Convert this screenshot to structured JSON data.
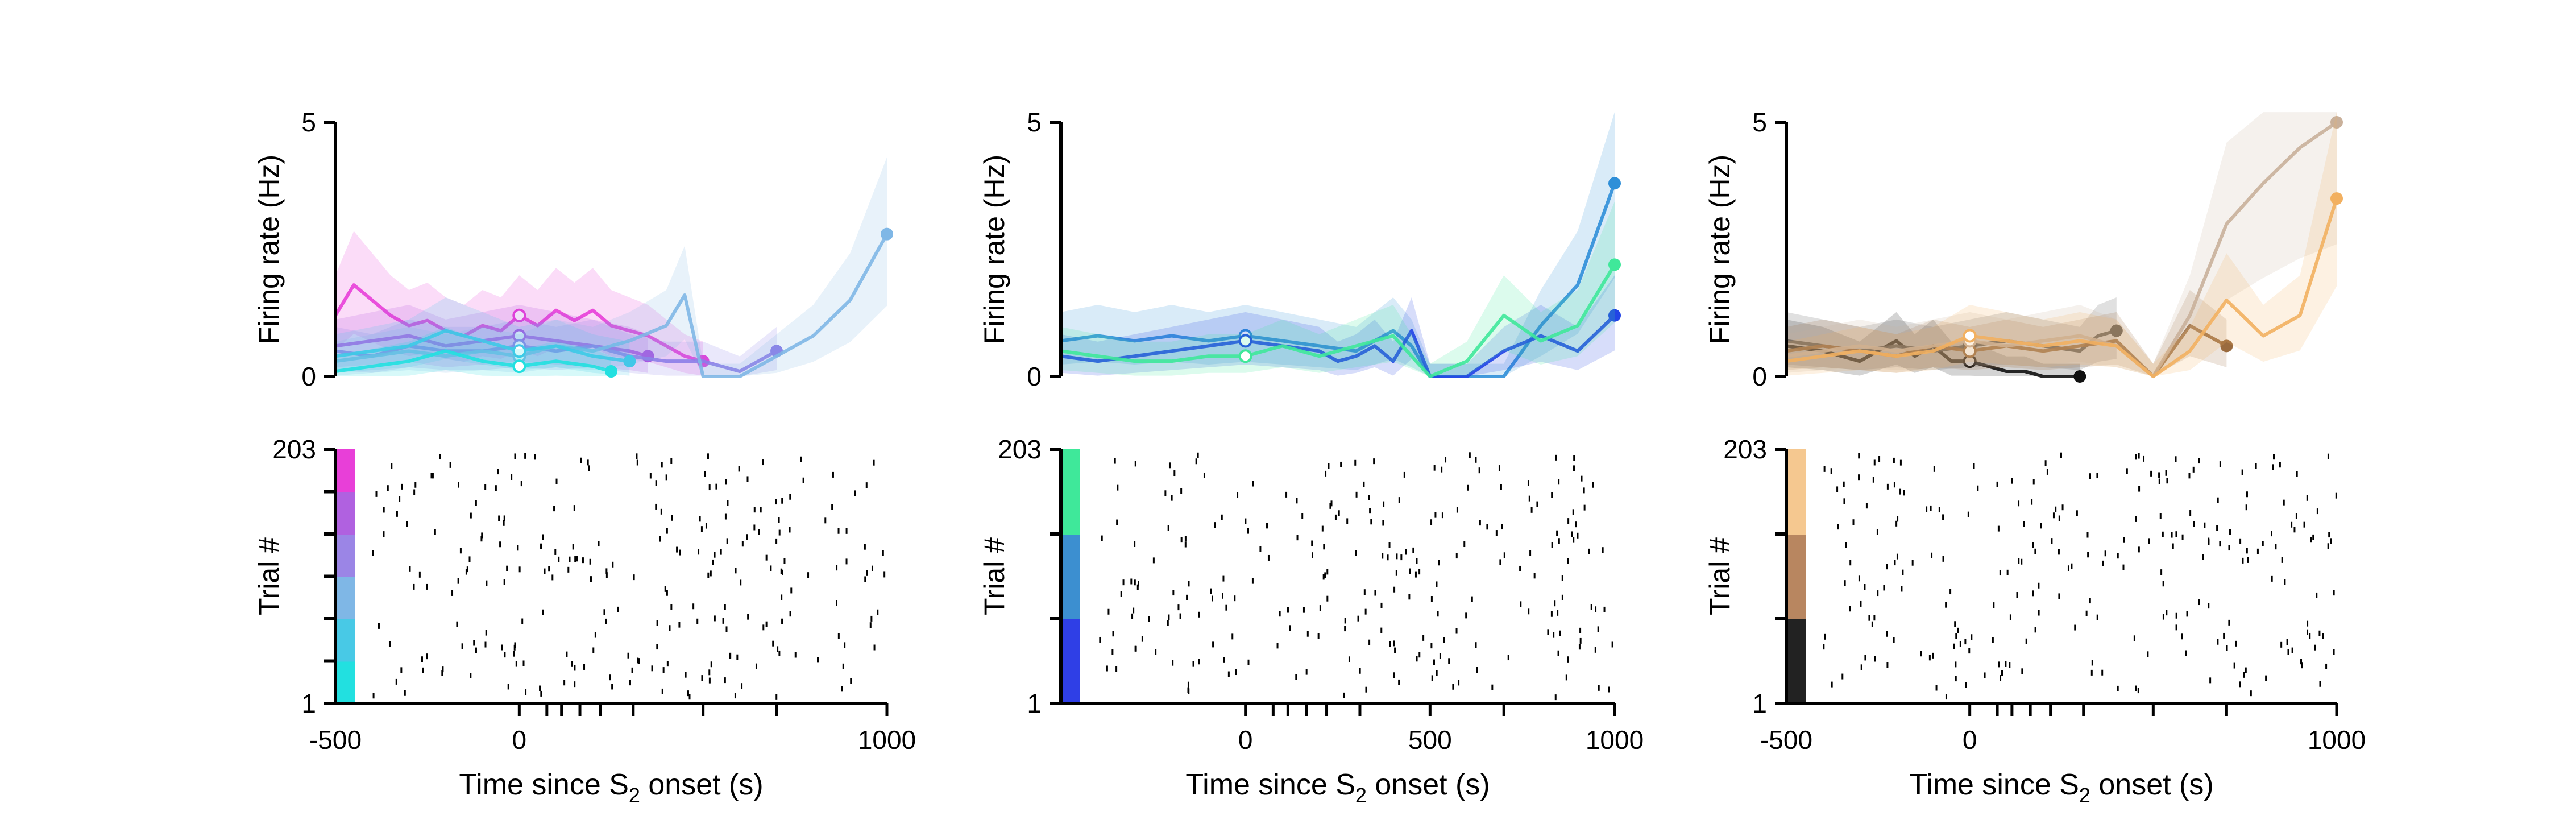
{
  "figure": {
    "raster_xlabel_main": "Time since S",
    "raster_xlabel_sub": "2",
    "raster_xlabel_tail": " onset (s)",
    "psth_ylabel": "Firing rate (Hz)",
    "raster_ylabel": "Trial #"
  },
  "chart_data": [
    {
      "type": "line",
      "panel": "psth-left",
      "ylabel": "Firing rate (Hz)",
      "ylim": [
        0,
        5
      ],
      "yticks": [
        "0",
        "5"
      ],
      "xlim": [
        -500,
        1000
      ],
      "series": [
        {
          "color": "#e83fd8",
          "x": [
            -500,
            -450,
            -400,
            -350,
            -300,
            -250,
            -200,
            -150,
            -100,
            -50,
            0,
            50,
            100,
            150,
            200,
            250,
            300,
            350,
            400,
            450,
            500
          ],
          "y": [
            1.2,
            1.8,
            1.5,
            1.2,
            1.0,
            1.1,
            0.9,
            0.8,
            1.0,
            0.9,
            1.2,
            1.0,
            1.3,
            1.1,
            1.3,
            1.0,
            0.9,
            0.8,
            0.6,
            0.4,
            0.3
          ]
        },
        {
          "color": "#b04ee0",
          "x": [
            -500,
            -400,
            -300,
            -200,
            -100,
            0,
            100,
            200,
            300,
            350
          ],
          "y": [
            0.6,
            0.7,
            0.8,
            0.6,
            0.7,
            0.8,
            0.7,
            0.6,
            0.5,
            0.4
          ]
        },
        {
          "color": "#8c7de8",
          "x": [
            -500,
            -400,
            -300,
            -200,
            -100,
            0,
            100,
            200,
            300,
            400,
            500,
            600,
            700
          ],
          "y": [
            0.5,
            0.4,
            0.6,
            0.5,
            0.5,
            0.6,
            0.5,
            0.6,
            0.4,
            0.3,
            0.3,
            0.1,
            0.5
          ]
        },
        {
          "color": "#7fb7e6",
          "x": [
            -500,
            -400,
            -300,
            -200,
            -100,
            0,
            100,
            200,
            300,
            400,
            450,
            500,
            600,
            700,
            800,
            900,
            1000
          ],
          "y": [
            0.3,
            0.4,
            0.5,
            0.4,
            0.5,
            0.4,
            0.6,
            0.5,
            0.7,
            1.0,
            1.6,
            0.0,
            0.0,
            0.4,
            0.8,
            1.5,
            2.8
          ]
        },
        {
          "color": "#42c7e8",
          "x": [
            -500,
            -400,
            -300,
            -200,
            -100,
            0,
            100,
            200,
            300
          ],
          "y": [
            0.4,
            0.5,
            0.6,
            0.9,
            0.7,
            0.5,
            0.6,
            0.4,
            0.3
          ]
        },
        {
          "color": "#22e0e0",
          "x": [
            -500,
            -400,
            -300,
            -200,
            -100,
            0,
            100,
            200,
            250
          ],
          "y": [
            0.1,
            0.2,
            0.3,
            0.5,
            0.3,
            0.2,
            0.3,
            0.2,
            0.1
          ]
        }
      ]
    },
    {
      "type": "line",
      "panel": "psth-middle",
      "ylabel": "Firing rate (Hz)",
      "ylim": [
        0,
        5
      ],
      "yticks": [
        "0",
        "5"
      ],
      "xlim": [
        -500,
        1000
      ],
      "series": [
        {
          "color": "#2f8fd8",
          "x": [
            -500,
            -400,
            -300,
            -200,
            -100,
            0,
            100,
            200,
            300,
            350,
            400,
            450,
            500,
            600,
            700,
            800,
            900,
            1000
          ],
          "y": [
            0.7,
            0.8,
            0.7,
            0.8,
            0.7,
            0.8,
            0.7,
            0.6,
            0.5,
            0.7,
            0.9,
            0.6,
            0.0,
            0.0,
            0.0,
            1.0,
            1.8,
            3.8
          ]
        },
        {
          "color": "#2244e6",
          "x": [
            -500,
            -400,
            -300,
            -200,
            -100,
            0,
            100,
            200,
            250,
            300,
            350,
            400,
            450,
            500,
            600,
            700,
            800,
            900,
            1000
          ],
          "y": [
            0.4,
            0.3,
            0.4,
            0.5,
            0.6,
            0.7,
            0.6,
            0.5,
            0.3,
            0.4,
            0.6,
            0.3,
            0.9,
            0.0,
            0.0,
            0.5,
            0.8,
            0.5,
            1.2
          ]
        },
        {
          "color": "#3fe89a",
          "x": [
            -500,
            -400,
            -300,
            -200,
            -100,
            0,
            100,
            150,
            200,
            300,
            400,
            500,
            600,
            700,
            800,
            900,
            1000
          ],
          "y": [
            0.5,
            0.4,
            0.3,
            0.3,
            0.4,
            0.4,
            0.6,
            0.5,
            0.4,
            0.6,
            0.8,
            0.0,
            0.3,
            1.2,
            0.7,
            1.0,
            2.2
          ]
        }
      ]
    },
    {
      "type": "line",
      "panel": "psth-right",
      "ylabel": "Firing rate (Hz)",
      "ylim": [
        0,
        5
      ],
      "yticks": [
        "0",
        "5"
      ],
      "xlim": [
        -500,
        1000
      ],
      "series": [
        {
          "color": "#111111",
          "x": [
            -500,
            -400,
            -300,
            -200,
            -150,
            -100,
            -50,
            0,
            50,
            100,
            150,
            200,
            250,
            300
          ],
          "y": [
            0.6,
            0.5,
            0.3,
            0.7,
            0.4,
            0.6,
            0.3,
            0.3,
            0.2,
            0.1,
            0.1,
            0.0,
            0.0,
            0.0
          ]
        },
        {
          "color": "#555555",
          "x": [
            -500,
            -400,
            -300,
            -200,
            -100,
            0,
            100,
            200,
            300,
            350,
            400
          ],
          "y": [
            0.7,
            0.6,
            0.5,
            0.6,
            0.5,
            0.6,
            0.7,
            0.6,
            0.5,
            0.8,
            0.9
          ]
        },
        {
          "color": "#9a6b3f",
          "x": [
            -500,
            -400,
            -300,
            -200,
            -100,
            0,
            100,
            200,
            300,
            400,
            500,
            600,
            700
          ],
          "y": [
            0.5,
            0.6,
            0.5,
            0.4,
            0.6,
            0.5,
            0.6,
            0.5,
            0.6,
            0.7,
            0.0,
            1.0,
            0.6
          ]
        },
        {
          "color": "#c9b09a",
          "x": [
            -500,
            -400,
            -300,
            -200,
            -100,
            0,
            100,
            200,
            300,
            400,
            500,
            600,
            700,
            800,
            900,
            1000
          ],
          "y": [
            0.4,
            0.5,
            0.6,
            0.5,
            0.6,
            0.7,
            0.6,
            0.7,
            0.8,
            0.6,
            0.0,
            1.2,
            3.0,
            3.8,
            4.5,
            5.0
          ]
        },
        {
          "color": "#f2b060",
          "x": [
            -500,
            -400,
            -300,
            -200,
            -100,
            0,
            100,
            200,
            300,
            400,
            500,
            600,
            700,
            800,
            900,
            1000
          ],
          "y": [
            0.3,
            0.4,
            0.5,
            0.4,
            0.5,
            0.8,
            0.7,
            0.6,
            0.7,
            0.6,
            0.0,
            0.5,
            1.5,
            0.8,
            1.2,
            3.5
          ]
        }
      ]
    },
    {
      "type": "scatter",
      "panel": "raster-left",
      "ylabel": "Trial #",
      "yticks": [
        "1",
        "203"
      ],
      "xlabel": "Time since S2 onset (s)",
      "xticks": [
        "-500",
        "0",
        "1000"
      ],
      "xlim": [
        -500,
        1000
      ],
      "ylim": [
        1,
        203
      ],
      "colorbar": [
        "#22e0e0",
        "#48c9e6",
        "#7fb7e6",
        "#9b85e6",
        "#b061e0",
        "#e83fd8"
      ]
    },
    {
      "type": "scatter",
      "panel": "raster-middle",
      "ylabel": "Trial #",
      "yticks": [
        "1",
        "203"
      ],
      "xlabel": "Time since S2 onset (s)",
      "xticks": [
        "0",
        "500",
        "1000"
      ],
      "xlim": [
        -500,
        1000
      ],
      "ylim": [
        1,
        203
      ],
      "colorbar": [
        "#2f3fe6",
        "#3c8fd0",
        "#3fe89a"
      ]
    },
    {
      "type": "scatter",
      "panel": "raster-right",
      "ylabel": "Trial #",
      "yticks": [
        "1",
        "203"
      ],
      "xlabel": "Time since S2 onset (s)",
      "xticks": [
        "-500",
        "0",
        "1000"
      ],
      "xlim": [
        -500,
        1000
      ],
      "ylim": [
        1,
        203
      ],
      "colorbar": [
        "#222222",
        "#b88660",
        "#f5c890"
      ]
    }
  ]
}
